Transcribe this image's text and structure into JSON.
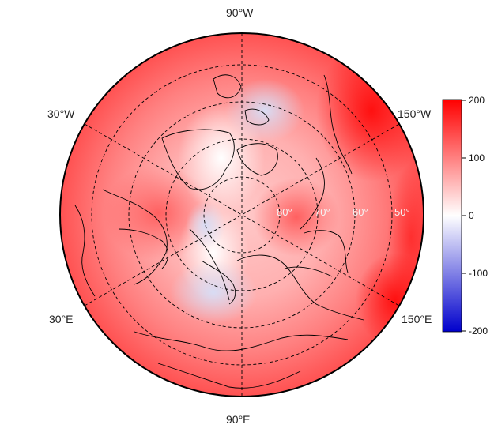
{
  "map": {
    "projection": "north-polar-stereographic",
    "longitude_labels": {
      "top": "90°W",
      "upper_left": "30°W",
      "upper_right": "150°W",
      "lower_left": "30°E",
      "lower_right": "150°E",
      "bottom": "90°E"
    },
    "latitude_labels": [
      "80°",
      "70°",
      "60°",
      "50°"
    ],
    "colors": {
      "high": "#ff0000",
      "zero": "#ffffff",
      "low": "#0000cc",
      "frame": "#000000"
    }
  },
  "colorbar": {
    "range": [
      -200,
      200
    ],
    "ticks": [
      "200",
      "100",
      "0",
      "-100",
      "-200"
    ]
  }
}
